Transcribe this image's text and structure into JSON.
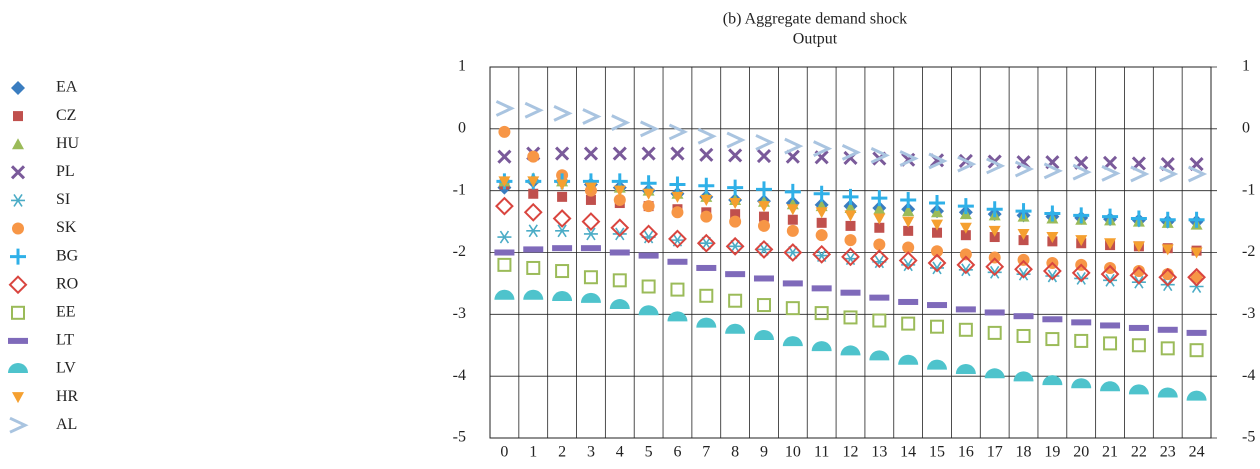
{
  "chart_data": {
    "type": "scatter",
    "title": "(b) Aggregate demand shock",
    "subtitle": "Output",
    "categories": [
      "0",
      "1",
      "2",
      "3",
      "4",
      "5",
      "6",
      "7",
      "8",
      "9",
      "10",
      "11",
      "12",
      "13",
      "14",
      "15",
      "16",
      "17",
      "18",
      "19",
      "20",
      "21",
      "22",
      "23",
      "24"
    ],
    "ylim": [
      -5,
      1
    ],
    "yticks": [
      -5,
      -4,
      -3,
      -2,
      -1,
      0,
      1
    ],
    "grid": true,
    "series": [
      {
        "name": "EA",
        "color": "#3a7dc0",
        "marker": "diamond",
        "values": [
          -0.95,
          -0.85,
          -0.85,
          -0.9,
          -0.95,
          -1.0,
          -1.05,
          -1.1,
          -1.15,
          -1.17,
          -1.2,
          -1.23,
          -1.25,
          -1.28,
          -1.3,
          -1.33,
          -1.35,
          -1.38,
          -1.4,
          -1.42,
          -1.44,
          -1.46,
          -1.48,
          -1.5,
          -1.5
        ]
      },
      {
        "name": "CZ",
        "color": "#c0504d",
        "marker": "square",
        "values": [
          -0.9,
          -1.05,
          -1.1,
          -1.15,
          -1.2,
          -1.25,
          -1.3,
          -1.35,
          -1.38,
          -1.42,
          -1.47,
          -1.52,
          -1.57,
          -1.6,
          -1.65,
          -1.68,
          -1.72,
          -1.75,
          -1.8,
          -1.82,
          -1.85,
          -1.88,
          -1.9,
          -1.93,
          -1.97
        ]
      },
      {
        "name": "HU",
        "color": "#9bbb59",
        "marker": "triangle",
        "values": [
          -0.85,
          -0.8,
          -0.85,
          -0.9,
          -0.95,
          -1.0,
          -1.05,
          -1.1,
          -1.15,
          -1.18,
          -1.22,
          -1.25,
          -1.28,
          -1.3,
          -1.33,
          -1.35,
          -1.38,
          -1.4,
          -1.42,
          -1.45,
          -1.47,
          -1.48,
          -1.5,
          -1.52,
          -1.55
        ]
      },
      {
        "name": "PL",
        "color": "#7a5a9a",
        "marker": "x",
        "values": [
          -0.45,
          -0.4,
          -0.4,
          -0.4,
          -0.4,
          -0.4,
          -0.4,
          -0.42,
          -0.43,
          -0.44,
          -0.45,
          -0.46,
          -0.47,
          -0.48,
          -0.5,
          -0.51,
          -0.52,
          -0.53,
          -0.54,
          -0.54,
          -0.55,
          -0.55,
          -0.56,
          -0.57,
          -0.57
        ]
      },
      {
        "name": "SI",
        "color": "#4bacc6",
        "marker": "asterisk",
        "values": [
          -1.75,
          -1.65,
          -1.65,
          -1.7,
          -1.7,
          -1.75,
          -1.8,
          -1.85,
          -1.9,
          -1.95,
          -2.0,
          -2.05,
          -2.1,
          -2.15,
          -2.2,
          -2.25,
          -2.28,
          -2.32,
          -2.35,
          -2.38,
          -2.42,
          -2.45,
          -2.48,
          -2.52,
          -2.55
        ]
      },
      {
        "name": "SK",
        "color": "#f79646",
        "marker": "circle",
        "values": [
          -0.05,
          -0.45,
          -0.75,
          -1.0,
          -1.15,
          -1.25,
          -1.35,
          -1.42,
          -1.5,
          -1.57,
          -1.65,
          -1.72,
          -1.8,
          -1.87,
          -1.92,
          -1.98,
          -2.03,
          -2.08,
          -2.12,
          -2.17,
          -2.2,
          -2.25,
          -2.3,
          -2.35,
          -2.4
        ]
      },
      {
        "name": "BG",
        "color": "#2fb0e8",
        "marker": "plus",
        "values": [
          -0.85,
          -0.85,
          -0.85,
          -0.85,
          -0.85,
          -0.88,
          -0.9,
          -0.92,
          -0.95,
          -0.98,
          -1.02,
          -1.05,
          -1.1,
          -1.12,
          -1.15,
          -1.2,
          -1.25,
          -1.3,
          -1.33,
          -1.37,
          -1.4,
          -1.42,
          -1.45,
          -1.47,
          -1.47
        ]
      },
      {
        "name": "RO",
        "color": "#d9453f",
        "marker": "diamond-open",
        "values": [
          -1.25,
          -1.35,
          -1.45,
          -1.5,
          -1.6,
          -1.7,
          -1.78,
          -1.85,
          -1.9,
          -1.95,
          -2.0,
          -2.03,
          -2.07,
          -2.1,
          -2.13,
          -2.17,
          -2.2,
          -2.23,
          -2.27,
          -2.3,
          -2.33,
          -2.35,
          -2.37,
          -2.4,
          -2.4
        ]
      },
      {
        "name": "EE",
        "color": "#9bbb59",
        "marker": "square-open",
        "values": [
          -2.2,
          -2.25,
          -2.3,
          -2.4,
          -2.45,
          -2.55,
          -2.6,
          -2.7,
          -2.78,
          -2.85,
          -2.9,
          -2.98,
          -3.05,
          -3.1,
          -3.15,
          -3.2,
          -3.25,
          -3.3,
          -3.35,
          -3.4,
          -3.43,
          -3.47,
          -3.5,
          -3.55,
          -3.58
        ]
      },
      {
        "name": "LT",
        "color": "#7f6aba",
        "marker": "dash",
        "values": [
          -2.0,
          -1.95,
          -1.93,
          -1.93,
          -2.0,
          -2.05,
          -2.15,
          -2.25,
          -2.35,
          -2.42,
          -2.5,
          -2.58,
          -2.65,
          -2.73,
          -2.8,
          -2.85,
          -2.92,
          -2.97,
          -3.03,
          -3.08,
          -3.13,
          -3.18,
          -3.22,
          -3.25,
          -3.3
        ]
      },
      {
        "name": "LV",
        "color": "#4ec3cc",
        "marker": "half-circle",
        "values": [
          -2.7,
          -2.7,
          -2.72,
          -2.75,
          -2.85,
          -2.95,
          -3.05,
          -3.15,
          -3.25,
          -3.35,
          -3.45,
          -3.53,
          -3.6,
          -3.68,
          -3.75,
          -3.83,
          -3.9,
          -3.97,
          -4.02,
          -4.08,
          -4.13,
          -4.18,
          -4.23,
          -4.28,
          -4.33
        ]
      },
      {
        "name": "HR",
        "color": "#f5a030",
        "marker": "triangle-down",
        "values": [
          -0.85,
          -0.85,
          -0.9,
          -0.95,
          -1.0,
          -1.05,
          -1.1,
          -1.15,
          -1.2,
          -1.25,
          -1.3,
          -1.35,
          -1.4,
          -1.45,
          -1.5,
          -1.55,
          -1.6,
          -1.65,
          -1.7,
          -1.75,
          -1.8,
          -1.85,
          -1.9,
          -1.95,
          -2.0
        ]
      },
      {
        "name": "AL",
        "color": "#a9c4e0",
        "marker": "chevron",
        "values": [
          0.33,
          0.3,
          0.25,
          0.2,
          0.1,
          0.0,
          -0.05,
          -0.12,
          -0.18,
          -0.22,
          -0.28,
          -0.32,
          -0.38,
          -0.43,
          -0.48,
          -0.52,
          -0.57,
          -0.6,
          -0.65,
          -0.68,
          -0.7,
          -0.72,
          -0.73,
          -0.73,
          -0.73
        ]
      }
    ]
  }
}
